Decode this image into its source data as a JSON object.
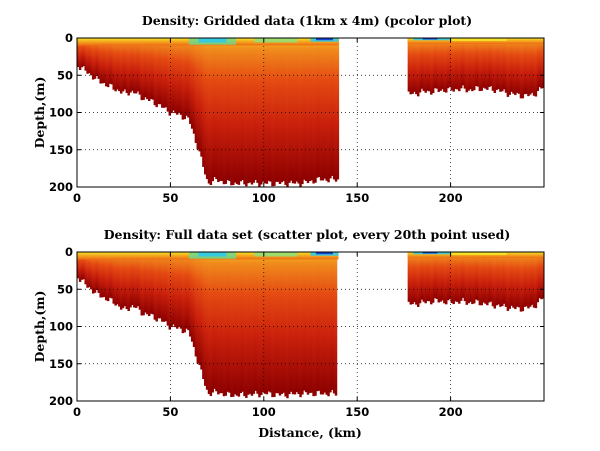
{
  "chart_data": [
    {
      "type": "heatmap",
      "title": "Density: Gridded data (1km x 4m) (pcolor plot)",
      "xlabel": "",
      "ylabel": "Depth,(m)",
      "xlim": [
        0,
        250
      ],
      "ylim": [
        0,
        200
      ],
      "y_reversed": true,
      "xticks": [
        0,
        50,
        100,
        150,
        200
      ],
      "yticks": [
        0,
        50,
        100,
        150,
        200
      ],
      "grid": true,
      "colormap": "jet",
      "density_colors": {
        "surface_light": "#29c9f0",
        "shallow": "#f5e82a",
        "mid": "#f08a1c",
        "deep": "#d9240f",
        "deepest": "#8c0000",
        "surface_dark": "#0a2ad6"
      },
      "data_gaps_km": [
        [
          141,
          177
        ]
      ],
      "bottom_depth_profile": {
        "distance_km": [
          0,
          5,
          10,
          15,
          20,
          25,
          30,
          35,
          40,
          45,
          50,
          55,
          60,
          65,
          70,
          75,
          80,
          90,
          100,
          110,
          120,
          130,
          140
        ],
        "depth_m": [
          36,
          45,
          55,
          62,
          68,
          74,
          72,
          80,
          85,
          92,
          100,
          103,
          110,
          150,
          195,
          190,
          195,
          195,
          195,
          195,
          195,
          190,
          190
        ]
      },
      "bottom_depth_profile_east": {
        "distance_km": [
          177,
          180,
          185,
          190,
          195,
          200,
          205,
          210,
          215,
          220,
          225,
          230,
          235,
          240,
          245,
          250
        ],
        "depth_m": [
          75,
          75,
          72,
          72,
          70,
          70,
          68,
          70,
          68,
          68,
          70,
          74,
          76,
          78,
          75,
          65
        ]
      }
    },
    {
      "type": "scatter",
      "title": "Density: Full data set (scatter plot, every 20th point used)",
      "xlabel": "Distance, (km)",
      "ylabel": "Depth,(m)",
      "xlim": [
        0,
        250
      ],
      "ylim": [
        0,
        200
      ],
      "y_reversed": true,
      "xticks": [
        0,
        50,
        100,
        150,
        200
      ],
      "yticks": [
        0,
        50,
        100,
        150,
        200
      ],
      "grid": true,
      "colormap": "jet",
      "data_gaps_km": [
        [
          140,
          177
        ]
      ],
      "bottom_depth_profile": {
        "distance_km": [
          0,
          5,
          10,
          15,
          20,
          25,
          30,
          35,
          40,
          45,
          50,
          55,
          60,
          65,
          70,
          75,
          80,
          90,
          100,
          110,
          120,
          130,
          139
        ],
        "depth_m": [
          32,
          45,
          55,
          62,
          68,
          78,
          72,
          82,
          86,
          92,
          100,
          103,
          108,
          150,
          190,
          188,
          192,
          192,
          190,
          192,
          190,
          190,
          190
        ]
      },
      "bottom_depth_profile_east": {
        "distance_km": [
          177,
          180,
          185,
          190,
          195,
          200,
          205,
          210,
          215,
          220,
          225,
          230,
          235,
          240,
          245,
          250
        ],
        "depth_m": [
          70,
          70,
          68,
          66,
          66,
          68,
          66,
          68,
          68,
          70,
          72,
          74,
          76,
          76,
          72,
          60
        ]
      }
    }
  ]
}
